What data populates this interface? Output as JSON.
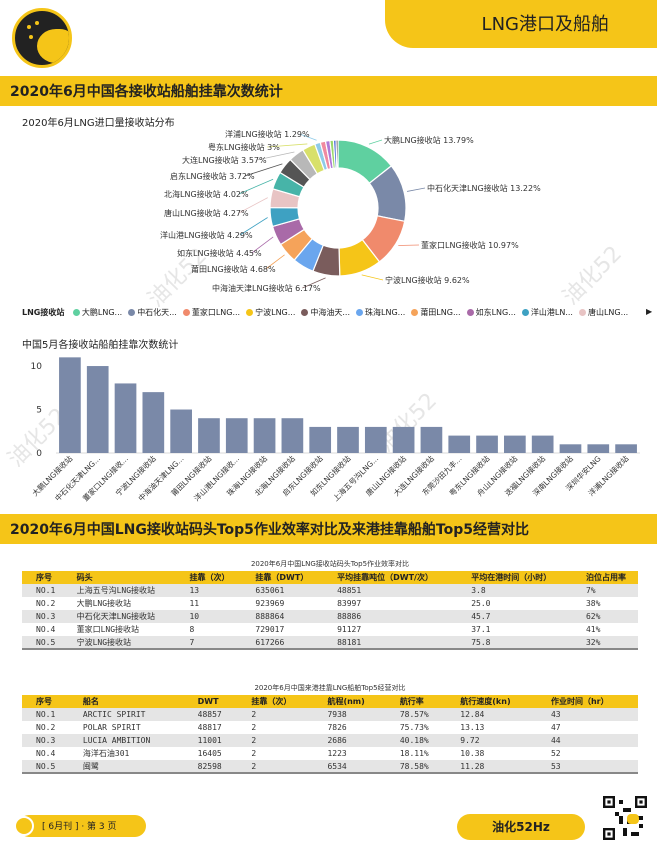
{
  "header": {
    "title": "LNG港口及船舶"
  },
  "section1": {
    "title": "2020年6月中国各接收站船舶挂靠次数统计"
  },
  "donut": {
    "title": "2020年6月LNG进口量接收站分布",
    "legend_title": "LNG接收站",
    "legend_items": [
      "大鹏LNG...",
      "中石化天...",
      "董家口LNG...",
      "宁波LNG...",
      "中海油天...",
      "珠海LNG...",
      "莆田LNG...",
      "如东LNG...",
      "洋山港LN...",
      "唐山LNG..."
    ],
    "more_icon": "▶",
    "watermark": "油化52"
  },
  "bar": {
    "title": "中国5月各接收站船舶挂靠次数统计"
  },
  "section2": {
    "title": "2020年6月中国LNG接收站码头Top5作业效率对比及来港挂靠船舶Top5经营对比"
  },
  "table1": {
    "caption": "2020年6月中国LNG接收站码头Top5作业效率对比",
    "headers": [
      "序号",
      "码头",
      "挂靠（次）",
      "挂靠（DWT）",
      "平均挂靠吨位（DWT/次）",
      "平均在港时间（小时）",
      "泊位占用率"
    ],
    "rows": [
      [
        "NO.1",
        "上海五号沟LNG接收站",
        "13",
        "635061",
        "48851",
        "3.8",
        "7%"
      ],
      [
        "NO.2",
        "大鹏LNG接收站",
        "11",
        "923969",
        "83997",
        "25.0",
        "38%"
      ],
      [
        "NO.3",
        "中石化天津LNG接收站",
        "10",
        "888864",
        "88886",
        "45.7",
        "62%"
      ],
      [
        "NO.4",
        "董家口LNG接收站",
        "8",
        "729017",
        "91127",
        "37.1",
        "41%"
      ],
      [
        "NO.5",
        "宁波LNG接收站",
        "7",
        "617266",
        "88181",
        "75.8",
        "32%"
      ]
    ]
  },
  "table2": {
    "caption": "2020年6月中国来港挂靠LNG船舶Top5经营对比",
    "headers": [
      "序号",
      "船名",
      "DWT",
      "挂靠（次）",
      "航程(nm)",
      "航行率",
      "航行速度(kn)",
      "作业时间（hr）"
    ],
    "rows": [
      [
        "NO.1",
        "ARCTIC SPIRIT",
        "48857",
        "2",
        "7938",
        "78.57%",
        "12.84",
        "43"
      ],
      [
        "NO.2",
        "POLAR SPIRIT",
        "48817",
        "2",
        "7826",
        "75.73%",
        "13.13",
        "47"
      ],
      [
        "NO.3",
        "LUCIA AMBITION",
        "11001",
        "2",
        "2686",
        "40.18%",
        "9.72",
        "44"
      ],
      [
        "NO.4",
        "海洋石油301",
        "16405",
        "2",
        "1223",
        "18.11%",
        "10.38",
        "52"
      ],
      [
        "NO.5",
        "闽鹭",
        "82598",
        "2",
        "6534",
        "78.58%",
        "11.28",
        "53"
      ]
    ]
  },
  "footer": {
    "issue": "[ 6月刊 ] · 第 3 页",
    "brand": "油化52Hz"
  },
  "chart_data": [
    {
      "type": "pie",
      "title": "2020年6月LNG进口量接收站分布",
      "legend_title": "LNG接收站",
      "categories": [
        "大鹏LNG接收站",
        "中石化天津LNG接收站",
        "董家口LNG接收站",
        "宁波LNG接收站",
        "中海油天津LNG接收站",
        "珠海LNG接收站",
        "莆田LNG接收站",
        "如东LNG接收站",
        "洋山港LNG接收站",
        "唐山LNG接收站",
        "北海LNG接收站",
        "启东LNG接收站",
        "大连LNG接收站",
        "粤东LNG接收站",
        "洋浦LNG接收站",
        "其他1",
        "其他2",
        "其他3",
        "其他4",
        "其他5"
      ],
      "labels": [
        "大鹏LNG接收站 13.79%",
        "中石化天津LNG接收站 13.22%",
        "董家口LNG接收站 10.97%",
        "宁波LNG接收站 9.62%",
        "中海油天津LNG接收站 6.17%",
        "",
        "莆田LNG接收站 4.68%",
        "如东LNG接收站 4.45%",
        "洋山港LNG接收站 4.29%",
        "唐山LNG接收站 4.27%",
        "北海LNG接收站 4.02%",
        "启东LNG接收站 3.72%",
        "大连LNG接收站 3.57%",
        "粤东LNG接收站 3%",
        "洋浦LNG接收站 1.29%",
        "",
        "",
        "",
        "",
        ""
      ],
      "values": [
        13.79,
        13.22,
        10.97,
        9.62,
        6.17,
        4.9,
        4.68,
        4.45,
        4.29,
        4.27,
        4.02,
        3.72,
        3.57,
        3.0,
        1.29,
        1.2,
        1.0,
        0.8,
        0.6,
        0.43
      ],
      "colors": [
        "#5fd0a0",
        "#7a89a8",
        "#f08a6c",
        "#f5c518",
        "#7a5c5c",
        "#6aa6ee",
        "#f5a35a",
        "#a96aa8",
        "#3ea1c2",
        "#e8c4c4",
        "#47b4a8",
        "#555555",
        "#b8b8b8",
        "#d8e06a",
        "#8fcbe8",
        "#f08aa0",
        "#b07ad8",
        "#9ad86a",
        "#4a6ad8",
        "#2a2a2a"
      ]
    },
    {
      "type": "bar",
      "title": "中国5月各接收站船舶挂靠次数统计",
      "categories": [
        "大鹏LNG接收站",
        "中石化天津LNG...",
        "董家口LNG接收...",
        "宁波LNG接收站",
        "中海油天津LNG...",
        "莆田LNG接收站",
        "洋山港LNG接收...",
        "珠海LNG接收站",
        "北海LNG接收站",
        "启东LNG接收站",
        "如东LNG接收站",
        "上海五号沟LNG...",
        "唐山LNG接收站",
        "大连LNG接收站",
        "东莞沙田九丰...",
        "粤东LNG接收站",
        "舟山LNG接收站",
        "迭福LNG接收站",
        "深南LNG接收站",
        "深圳华安LNG",
        "洋浦LNG接收站"
      ],
      "values": [
        11,
        10,
        8,
        7,
        5,
        4,
        4,
        4,
        4,
        3,
        3,
        3,
        3,
        3,
        2,
        2,
        2,
        2,
        1,
        1,
        1
      ],
      "ylim": [
        0,
        10
      ],
      "yticks": [
        0,
        5,
        10
      ],
      "color": "#7a89a8"
    }
  ]
}
